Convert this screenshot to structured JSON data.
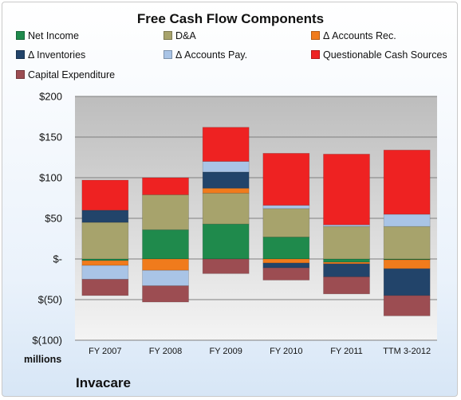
{
  "chart_data": {
    "type": "bar",
    "stacked": true,
    "title": "Free Cash Flow Components",
    "ylabel": "",
    "xlabel": "",
    "units_label": "millions",
    "company": "Invacare",
    "categories": [
      "FY 2007",
      "FY 2008",
      "FY 2009",
      "FY 2010",
      "FY 2011",
      "TTM 3-2012"
    ],
    "yticks": [
      "$200",
      "$150",
      "$100",
      "$50",
      "$-",
      "$(50)",
      "$(100)"
    ],
    "ylim": [
      -100,
      200
    ],
    "legend_position": "top",
    "series": [
      {
        "name": "Net Income",
        "color": "#1f8a4c",
        "values": [
          -2,
          36,
          43,
          27,
          -4,
          -1
        ]
      },
      {
        "name": "D&A",
        "color": "#a7a36c",
        "values": [
          45,
          43,
          38,
          35,
          40,
          40
        ]
      },
      {
        "name": "Δ Accounts Rec.",
        "color": "#f07b1c",
        "values": [
          -6,
          -14,
          6,
          -5,
          -2,
          -11
        ]
      },
      {
        "name": "Δ Inventories",
        "color": "#22446a",
        "values": [
          15,
          0,
          20,
          -6,
          -16,
          -33
        ]
      },
      {
        "name": "Δ Accounts Pay.",
        "color": "#a9c4e6",
        "values": [
          -17,
          -19,
          13,
          4,
          2,
          15
        ]
      },
      {
        "name": "Questionable Cash Sources",
        "color": "#ee2222",
        "values": [
          37,
          21,
          42,
          64,
          87,
          79
        ]
      },
      {
        "name": "Capital Expenditure",
        "color": "#9c4d52",
        "values": [
          -20,
          -20,
          -18,
          -15,
          -21,
          -25
        ]
      }
    ]
  }
}
